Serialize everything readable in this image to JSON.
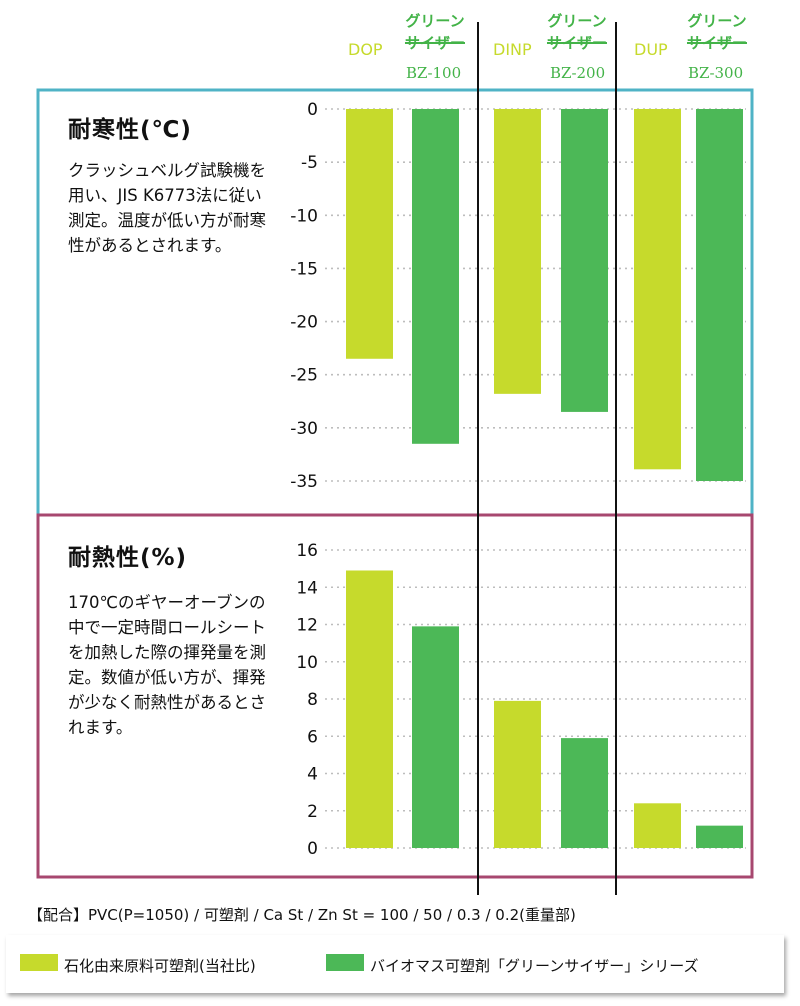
{
  "colors": {
    "fossil": "#c6da2c",
    "biomass": "#4cb857",
    "cold_border": "#4fb3c6",
    "heat_border": "#a7476f",
    "grid": "#bdbdbd",
    "divider": "#111111"
  },
  "groups": [
    {
      "plain": "DOP",
      "green_line1": "グリーン",
      "green_line2": "サイザー",
      "code": "BZ-100"
    },
    {
      "plain": "DINP",
      "green_line1": "グリーン",
      "green_line2": "サイザー",
      "code": "BZ-200"
    },
    {
      "plain": "DUP",
      "green_line1": "グリーン",
      "green_line2": "サイザー",
      "code": "BZ-300"
    }
  ],
  "panels": {
    "cold": {
      "title": "耐寒性(℃)",
      "description": "クラッシュベルグ試験機を用い、JIS K6773法に従い測定。温度が低い方が耐寒性があるとされます。"
    },
    "heat": {
      "title": "耐熱性(%)",
      "description": "170℃のギヤーオーブンの中で一定時間ロールシートを加熱した際の揮発量を測定。数値が低い方が、揮発が少なく耐熱性があるとされます。"
    }
  },
  "chart_data": [
    {
      "type": "bar",
      "title": "耐寒性(℃)",
      "categories": [
        "DOP",
        "グリーンサイザー BZ-100",
        "DINP",
        "グリーンサイザー BZ-200",
        "DUP",
        "グリーンサイザー BZ-300"
      ],
      "values": [
        -23.5,
        -31.5,
        -26.8,
        -28.5,
        -33.9,
        -35
      ],
      "ylim": [
        -35,
        0
      ],
      "yticks": [
        0,
        -5,
        -10,
        -15,
        -20,
        -25,
        -30,
        -35
      ],
      "grid": true
    },
    {
      "type": "bar",
      "title": "耐熱性(%)",
      "categories": [
        "DOP",
        "グリーンサイザー BZ-100",
        "DINP",
        "グリーンサイザー BZ-200",
        "DUP",
        "グリーンサイザー BZ-300"
      ],
      "values": [
        14.9,
        11.9,
        7.9,
        5.9,
        2.4,
        1.2
      ],
      "ylim": [
        0,
        16
      ],
      "yticks": [
        16,
        14,
        12,
        10,
        8,
        6,
        4,
        2,
        0
      ],
      "grid": true
    }
  ],
  "formula": "【配合】PVC(P=1050) / 可塑剤 / Ca St / Zn St = 100 / 50 / 0.3 / 0.2(重量部)",
  "legend": {
    "fossil_label": "石化由来原料可塑剤(当社比)",
    "biomass_label": "バイオマス可塑剤「グリーンサイザー」シリーズ"
  }
}
